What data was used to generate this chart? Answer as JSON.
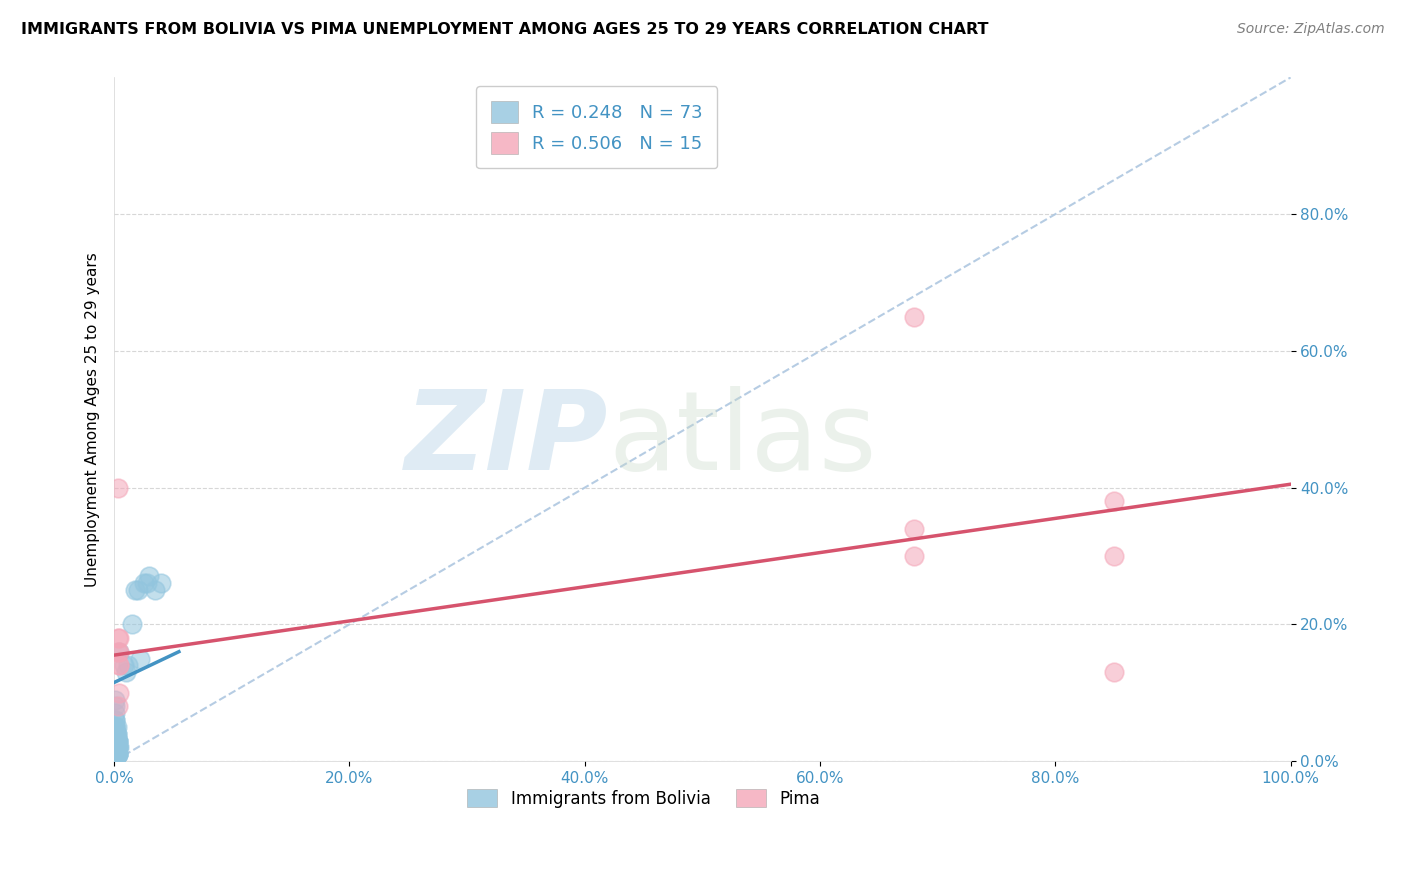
{
  "title": "IMMIGRANTS FROM BOLIVIA VS PIMA UNEMPLOYMENT AMONG AGES 25 TO 29 YEARS CORRELATION CHART",
  "source": "Source: ZipAtlas.com",
  "ylabel": "Unemployment Among Ages 25 to 29 years",
  "xlim": [
    0.0,
    1.0
  ],
  "ylim": [
    0.0,
    1.0
  ],
  "xticks": [
    0.0,
    0.2,
    0.4,
    0.6,
    0.8,
    1.0
  ],
  "yticks": [
    0.0,
    0.2,
    0.4,
    0.6,
    0.8
  ],
  "xtick_labels": [
    "0.0%",
    "20.0%",
    "40.0%",
    "60.0%",
    "80.0%",
    "100.0%"
  ],
  "ytick_labels": [
    "0.0%",
    "20.0%",
    "40.0%",
    "60.0%",
    "80.0%"
  ],
  "blue_color": "#92c5de",
  "pink_color": "#f4a6b8",
  "blue_line_color": "#4393c3",
  "pink_line_color": "#d6536d",
  "legend_R_blue": "R = 0.248",
  "legend_N_blue": "N = 73",
  "legend_R_pink": "R = 0.506",
  "legend_N_pink": "N = 15",
  "legend_label_blue": "Immigrants from Bolivia",
  "legend_label_pink": "Pima",
  "watermark_zip": "ZIP",
  "watermark_atlas": "atlas",
  "blue_scatter_x": [
    0.002,
    0.003,
    0.001,
    0.004,
    0.002,
    0.001,
    0.003,
    0.002,
    0.001,
    0.002,
    0.001,
    0.003,
    0.002,
    0.001,
    0.002,
    0.003,
    0.001,
    0.002,
    0.001,
    0.002,
    0.003,
    0.001,
    0.002,
    0.001,
    0.002,
    0.001,
    0.002,
    0.003,
    0.001,
    0.002,
    0.001,
    0.002,
    0.001,
    0.003,
    0.002,
    0.001,
    0.002,
    0.001,
    0.002,
    0.001,
    0.002,
    0.001,
    0.002,
    0.001,
    0.002,
    0.003,
    0.001,
    0.002,
    0.001,
    0.003,
    0.002,
    0.001,
    0.002,
    0.001,
    0.002,
    0.001,
    0.002,
    0.001,
    0.002,
    0.003,
    0.008,
    0.01,
    0.012,
    0.015,
    0.018,
    0.02,
    0.025,
    0.028,
    0.03,
    0.035,
    0.04,
    0.022,
    0.004
  ],
  "blue_scatter_y": [
    0.02,
    0.01,
    0.03,
    0.02,
    0.04,
    0.01,
    0.02,
    0.03,
    0.05,
    0.02,
    0.03,
    0.01,
    0.04,
    0.06,
    0.02,
    0.03,
    0.07,
    0.02,
    0.08,
    0.01,
    0.03,
    0.09,
    0.02,
    0.01,
    0.03,
    0.04,
    0.02,
    0.01,
    0.05,
    0.02,
    0.03,
    0.01,
    0.06,
    0.02,
    0.01,
    0.03,
    0.02,
    0.04,
    0.01,
    0.02,
    0.03,
    0.05,
    0.02,
    0.01,
    0.03,
    0.02,
    0.04,
    0.01,
    0.02,
    0.03,
    0.05,
    0.02,
    0.01,
    0.03,
    0.02,
    0.04,
    0.01,
    0.02,
    0.03,
    0.01,
    0.14,
    0.13,
    0.14,
    0.2,
    0.25,
    0.25,
    0.26,
    0.26,
    0.27,
    0.25,
    0.26,
    0.15,
    0.16
  ],
  "pink_scatter_x": [
    0.003,
    0.004,
    0.004,
    0.004,
    0.003,
    0.003,
    0.004,
    0.68,
    0.68,
    0.68,
    0.85,
    0.85,
    0.85,
    0.004,
    0.003
  ],
  "pink_scatter_y": [
    0.4,
    0.18,
    0.16,
    0.14,
    0.18,
    0.16,
    0.14,
    0.65,
    0.34,
    0.3,
    0.38,
    0.13,
    0.3,
    0.1,
    0.08
  ],
  "blue_trendline_x": [
    0.0,
    0.055
  ],
  "blue_trendline_y": [
    0.115,
    0.16
  ],
  "pink_trendline_x": [
    0.0,
    1.0
  ],
  "pink_trendline_y": [
    0.155,
    0.405
  ],
  "dashed_trendline_x": [
    0.0,
    1.0
  ],
  "dashed_trendline_y": [
    0.0,
    1.0
  ]
}
